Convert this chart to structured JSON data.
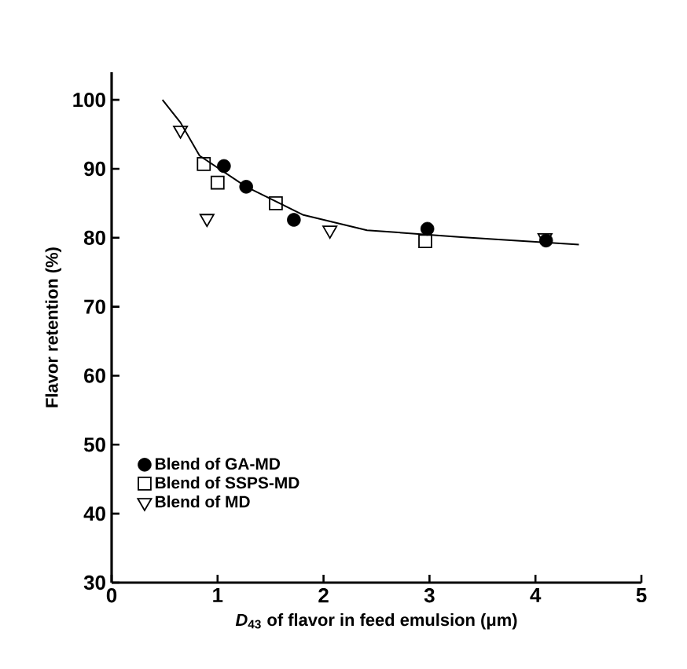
{
  "chart_data": {
    "type": "scatter",
    "xlabel": "*D*$_{43}$ of flavor in feed emulsion (μm)",
    "ylabel": "Flavor retention (%)",
    "xlim": [
      0,
      5
    ],
    "xticks": [
      0,
      1,
      2,
      3,
      4,
      5
    ],
    "ylim": [
      30,
      104
    ],
    "yticks": [
      30,
      40,
      50,
      60,
      70,
      80,
      90,
      100
    ],
    "grid": false,
    "legend": "bottom left",
    "series": [
      {
        "name": "Blend of GA-MD",
        "color": "#000000",
        "marker": "circle",
        "x": [
          1.06,
          1.27,
          1.72,
          2.98,
          4.1
        ],
        "values": [
          90.4,
          87.4,
          82.6,
          81.3,
          79.6
        ]
      },
      {
        "name": "Blend of SSPS-MD",
        "color": "#000000",
        "marker": "square",
        "x": [
          0.87,
          1.0,
          1.55,
          2.96
        ],
        "values": [
          90.7,
          88.0,
          85.0,
          79.5
        ]
      },
      {
        "name": "Blend of MD",
        "color": "#000000",
        "marker": "triangle",
        "x": [
          0.65,
          0.9,
          2.06,
          4.09
        ],
        "values": [
          95.6,
          82.8,
          81.1,
          80.0
        ]
      },
      {
        "type": "line",
        "color": "#000000",
        "marker": "none",
        "line_style": "solid",
        "x": [
          0.48,
          0.65,
          0.83,
          1.27,
          1.81,
          2.41,
          3.3,
          4.41
        ],
        "values": [
          100,
          96.7,
          91.9,
          87.4,
          83.3,
          81.1,
          80.1,
          79.0
        ]
      }
    ]
  }
}
